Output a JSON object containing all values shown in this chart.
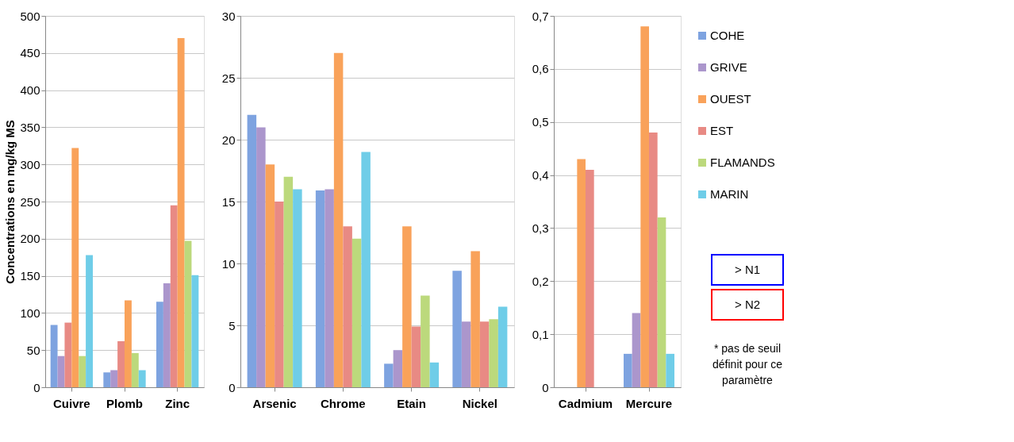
{
  "chart_data": [
    {
      "type": "bar",
      "ylabel": "Concentrations en mg/kg MS",
      "categories": [
        "Cuivre",
        "Plomb",
        "Zinc"
      ],
      "ylim": [
        0,
        500
      ],
      "yticks": [
        0,
        50,
        100,
        150,
        200,
        250,
        300,
        350,
        400,
        450,
        500
      ],
      "grid": "y",
      "series": [
        {
          "color": "#7ea3e0",
          "values": [
            84,
            20,
            115
          ]
        },
        {
          "color": "#ab96cc",
          "values": [
            42,
            23,
            140
          ]
        },
        {
          "color": "#e88a84",
          "values": [
            87,
            62,
            245
          ]
        },
        {
          "color": "#f9a25a",
          "values": [
            322,
            117,
            470
          ]
        },
        {
          "color": "#bcd97c",
          "values": [
            42,
            46,
            197
          ]
        },
        {
          "color": "#6fcde8",
          "values": [
            178,
            23,
            151
          ]
        }
      ]
    },
    {
      "type": "bar",
      "categories": [
        "Arsenic",
        "Chrome",
        "Etain",
        "Nickel"
      ],
      "ylim": [
        0,
        30
      ],
      "yticks": [
        0,
        5,
        10,
        15,
        20,
        25,
        30
      ],
      "grid": "y",
      "series": [
        {
          "color": "#7ea3e0",
          "values": [
            22,
            15.9,
            1.9,
            9.4
          ]
        },
        {
          "color": "#ab96cc",
          "values": [
            21,
            16,
            3,
            5.3
          ]
        },
        {
          "color": "#f9a25a",
          "values": [
            18,
            27,
            13,
            11
          ]
        },
        {
          "color": "#e88a84",
          "values": [
            15,
            13,
            4.9,
            5.3
          ]
        },
        {
          "color": "#bcd97c",
          "values": [
            17,
            12,
            7.4,
            5.5
          ]
        },
        {
          "color": "#6fcde8",
          "values": [
            16,
            19,
            2,
            6.5
          ]
        }
      ]
    },
    {
      "type": "bar",
      "categories": [
        "Cadmium",
        "Mercure"
      ],
      "ylim": [
        0,
        0.7
      ],
      "yticks": [
        {
          "value": 0,
          "label": "0"
        },
        {
          "value": 0.1,
          "label": "0,1"
        },
        {
          "value": 0.2,
          "label": "0,2"
        },
        {
          "value": 0.3,
          "label": "0,3"
        },
        {
          "value": 0.4,
          "label": "0,4"
        },
        {
          "value": 0.5,
          "label": "0,5"
        },
        {
          "value": 0.6,
          "label": "0,6"
        },
        {
          "value": 0.7,
          "label": "0,7"
        }
      ],
      "grid": "y",
      "legend": "right",
      "annotations": [
        "> N1",
        "> N2",
        "* pas de seuil définit pour ce paramètre"
      ],
      "series": [
        {
          "name": "COHE",
          "color": "#7ea3e0",
          "values": [
            null,
            0.063
          ]
        },
        {
          "name": "GRIVE",
          "color": "#ab96cc",
          "values": [
            null,
            0.14
          ]
        },
        {
          "name": "OUEST",
          "color": "#f9a25a",
          "values": [
            0.43,
            0.68
          ]
        },
        {
          "name": "EST",
          "color": "#e88a84",
          "values": [
            0.41,
            0.48
          ]
        },
        {
          "name": "FLAMANDS",
          "color": "#bcd97c",
          "values": [
            null,
            0.32
          ]
        },
        {
          "name": "MARIN",
          "color": "#6fcde8",
          "values": [
            null,
            0.063
          ]
        }
      ]
    }
  ]
}
